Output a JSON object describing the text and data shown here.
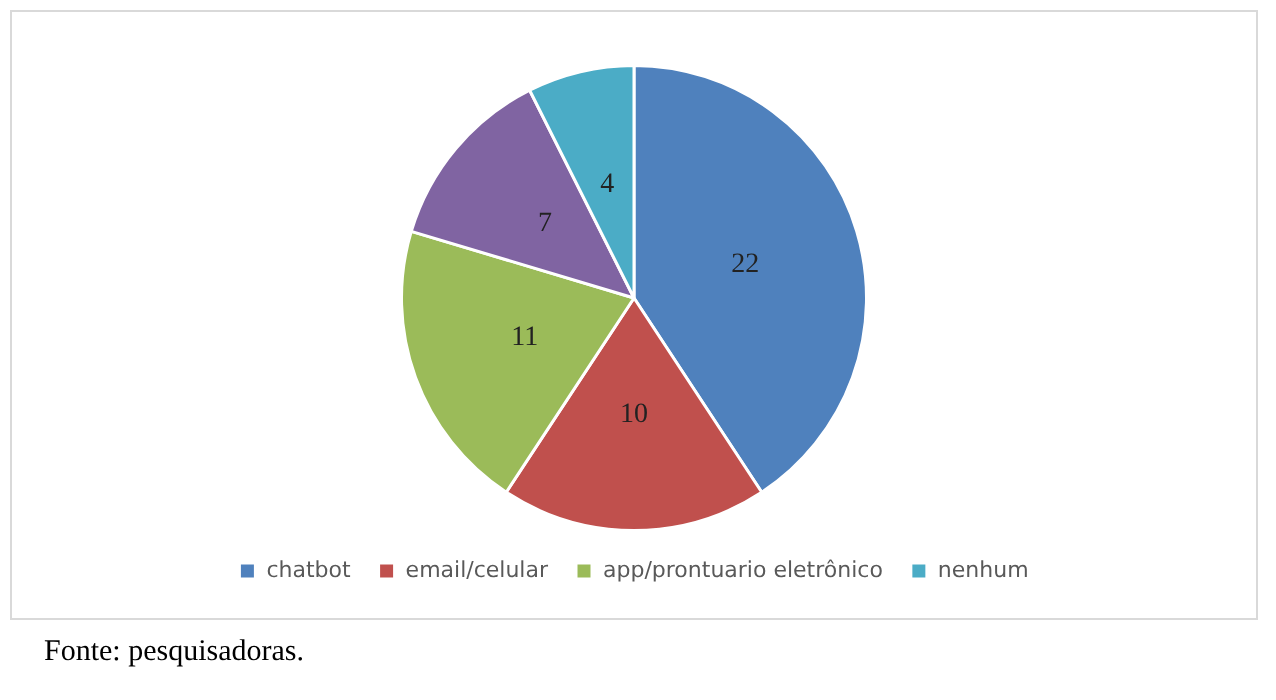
{
  "chart_data": {
    "type": "pie",
    "categories": [
      "chatbot",
      "email/celular",
      "app/prontuario eletrônico",
      null,
      "nenhum"
    ],
    "values": [
      22,
      10,
      11,
      7,
      4
    ],
    "colors": [
      "#4f81bd",
      "#c0504d",
      "#9bbb59",
      "#8064a2",
      "#4bacc6"
    ],
    "data_labels": true,
    "legend": "bottom",
    "annotations": [
      "Fonte: pesquisadoras."
    ]
  }
}
